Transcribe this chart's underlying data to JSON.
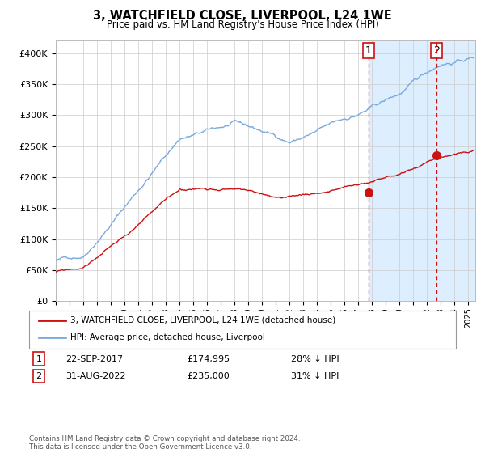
{
  "title": "3, WATCHFIELD CLOSE, LIVERPOOL, L24 1WE",
  "subtitle": "Price paid vs. HM Land Registry's House Price Index (HPI)",
  "ylabel_ticks": [
    "£0",
    "£50K",
    "£100K",
    "£150K",
    "£200K",
    "£250K",
    "£300K",
    "£350K",
    "£400K"
  ],
  "ytick_values": [
    0,
    50000,
    100000,
    150000,
    200000,
    250000,
    300000,
    350000,
    400000
  ],
  "ylim": [
    0,
    420000
  ],
  "xlim_start": 1995.0,
  "xlim_end": 2025.5,
  "hpi_color": "#7aaadd",
  "price_color": "#cc1111",
  "marker1_date": 2017.72,
  "marker1_price": 174995,
  "marker2_date": 2022.67,
  "marker2_price": 235000,
  "marker1_label": "22-SEP-2017",
  "marker1_value": "£174,995",
  "marker1_pct": "28% ↓ HPI",
  "marker2_label": "31-AUG-2022",
  "marker2_value": "£235,000",
  "marker2_pct": "31% ↓ HPI",
  "legend_line1": "3, WATCHFIELD CLOSE, LIVERPOOL, L24 1WE (detached house)",
  "legend_line2": "HPI: Average price, detached house, Liverpool",
  "footnote": "Contains HM Land Registry data © Crown copyright and database right 2024.\nThis data is licensed under the Open Government Licence v3.0.",
  "background_shaded_start": 2017.72,
  "background_shaded_end": 2025.5,
  "background_color": "#ddeeff",
  "hpi_seed": 42,
  "price_seed": 99
}
